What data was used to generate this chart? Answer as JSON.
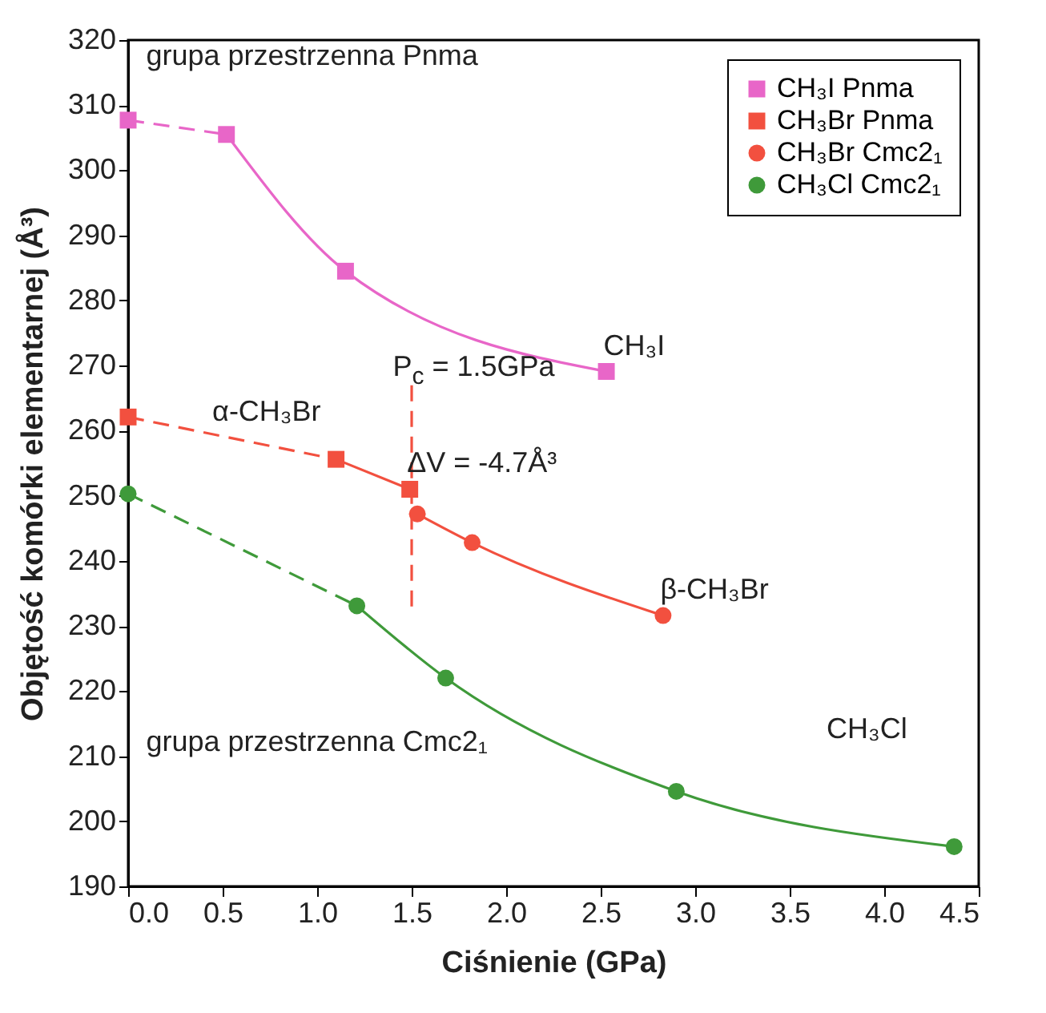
{
  "chart_data": {
    "type": "scatter",
    "xlabel": "Ciśnienie (GPa)",
    "ylabel": "Objętość komórki elementarnej (Å³)",
    "xlim": [
      0,
      4.5
    ],
    "xticks": [
      {
        "value": 0,
        "label": "0.0"
      },
      {
        "value": 0.5,
        "label": "0.5"
      },
      {
        "value": 1,
        "label": "1.0"
      },
      {
        "value": 1.5,
        "label": "1.5"
      },
      {
        "value": 2,
        "label": "2.0"
      },
      {
        "value": 2.5,
        "label": "2.5"
      },
      {
        "value": 3,
        "label": "3.0"
      },
      {
        "value": 3.5,
        "label": "3.5"
      },
      {
        "value": 4,
        "label": "4.0"
      },
      {
        "value": 4.5,
        "label": "4.5"
      }
    ],
    "ylim": [
      190,
      320
    ],
    "yticks": [
      190,
      200,
      210,
      220,
      230,
      240,
      250,
      260,
      270,
      280,
      290,
      300,
      310,
      320
    ],
    "grid": false,
    "legend": "top right",
    "series": [
      {
        "name": "CH₃I Pnma",
        "marker": "square",
        "color": "#e866c8",
        "x": [
          0,
          0.52,
          1.15,
          2.53
        ],
        "values": [
          307.7,
          305.5,
          284.5,
          269.1
        ]
      },
      {
        "name": "CH₃Br Pnma",
        "marker": "square",
        "color": "#f2503f",
        "x": [
          0,
          1.1,
          1.49
        ],
        "values": [
          262.1,
          255.6,
          251
        ]
      },
      {
        "name": "CH₃Br Cmc2₁",
        "marker": "circle",
        "color": "#f2503f",
        "x": [
          1.53,
          1.82,
          2.83
        ],
        "values": [
          247.2,
          242.8,
          231.6
        ]
      },
      {
        "name": "CH₃Cl Cmc2₁",
        "marker": "circle",
        "color": "#3f9a3a",
        "x": [
          0,
          1.21,
          1.68,
          2.9,
          4.37
        ],
        "values": [
          250.3,
          233.1,
          222,
          204.6,
          196.1
        ]
      },
      {
        "type": "line",
        "marker": "none",
        "line_style": "dashed",
        "color": "#e866c8",
        "x": [
          0,
          0.52
        ],
        "values": [
          307.7,
          305.5
        ]
      },
      {
        "type": "line",
        "marker": "none",
        "line_style": "solid",
        "color": "#e866c8",
        "x": [
          0.52,
          1.15,
          2.53
        ],
        "values": [
          305.5,
          284.5,
          269.1
        ]
      },
      {
        "type": "line",
        "marker": "none",
        "line_style": "dashed",
        "color": "#f2503f",
        "x": [
          0,
          1.1
        ],
        "values": [
          262.1,
          255.6
        ]
      },
      {
        "type": "line",
        "marker": "none",
        "line_style": "solid",
        "color": "#f2503f",
        "x": [
          1.1,
          1.49
        ],
        "values": [
          255.6,
          251
        ]
      },
      {
        "type": "line",
        "marker": "none",
        "line_style": "solid",
        "color": "#f2503f",
        "x": [
          1.53,
          1.82,
          2.83
        ],
        "values": [
          247.2,
          242.8,
          231.6
        ]
      },
      {
        "type": "line",
        "marker": "none",
        "line_style": "dashed",
        "color": "#f2503f",
        "x": [
          1.5,
          1.5
        ],
        "values": [
          233,
          267
        ]
      },
      {
        "type": "line",
        "marker": "none",
        "line_style": "dashed",
        "color": "#3f9a3a",
        "x": [
          0,
          1.21
        ],
        "values": [
          250.3,
          233.1
        ]
      },
      {
        "type": "line",
        "marker": "none",
        "line_style": "solid",
        "color": "#3f9a3a",
        "x": [
          1.21,
          1.68,
          2.9,
          4.37
        ],
        "values": [
          233.1,
          222,
          204.6,
          196.1
        ]
      }
    ],
    "annotations": [
      "grupa przestrzenna Pnma",
      {
        "text": "CH₃I",
        "x": 2.6,
        "y": 269.1
      },
      {
        "text": "α-CH₃Br",
        "x": 0.53,
        "y": 259
      },
      "P$_{c}$ = 1.5GPa",
      {
        "text": "ΔV = -4.7Å³",
        "x": 1.56,
        "y": 251
      },
      {
        "text": "β-CH₃Br",
        "x": 2.9,
        "y": 231.6
      },
      "grupa przestrzenna Cmc2₁",
      "CH₃Cl"
    ]
  }
}
